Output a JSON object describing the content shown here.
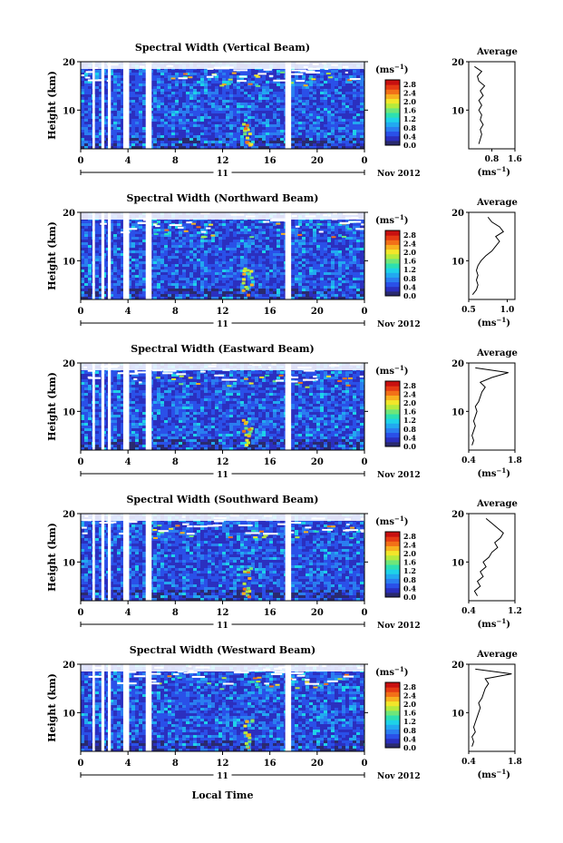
{
  "figure": {
    "xlabel_bottom": "Local Time",
    "date_label": "Nov 2012",
    "day_label": "11",
    "colorbar_unit_base": "(ms",
    "colorbar_unit_exp": "−1",
    "colorbar_unit_close": ")",
    "height_label": "Height (km)",
    "avg_title": "Average"
  },
  "colors": {
    "colormap": [
      "#2a2a6e",
      "#2b2fbf",
      "#2a50e8",
      "#2a7ef0",
      "#22a9f0",
      "#1ed2e8",
      "#2de0b0",
      "#6ee67a",
      "#b6ea3c",
      "#f2e62a",
      "#f7b01f",
      "#f27018",
      "#e53a14",
      "#c81010"
    ],
    "background": "#2f52e0"
  },
  "chart_data": [
    {
      "type": "heatmap",
      "title": "Spectral Width (Vertical Beam)",
      "ylabel": "Height (km)",
      "x_ticks": [
        "0",
        "4",
        "8",
        "12",
        "16",
        "20",
        "0"
      ],
      "y_ticks": [
        "20",
        "10"
      ],
      "xlim": [
        0,
        24
      ],
      "ylim": [
        2,
        20
      ],
      "colorbar_ticks": [
        "2.8",
        "2.4",
        "2.0",
        "1.6",
        "1.2",
        "0.8",
        "0.4",
        "0.0"
      ],
      "avg": {
        "xlim": [
          0.0,
          1.6
        ],
        "x_ticks": [
          "0.8",
          "1.6"
        ],
        "x_ticks_pos": [
          0.8,
          1.6
        ],
        "xlabel_base": "(ms",
        "xlabel_exp": "−1",
        "xlabel_close": ")",
        "profile": [
          [
            0.35,
            3
          ],
          [
            0.4,
            4
          ],
          [
            0.45,
            5
          ],
          [
            0.4,
            6
          ],
          [
            0.5,
            7
          ],
          [
            0.4,
            8
          ],
          [
            0.45,
            9
          ],
          [
            0.35,
            10
          ],
          [
            0.45,
            11
          ],
          [
            0.35,
            12
          ],
          [
            0.5,
            13
          ],
          [
            0.4,
            14
          ],
          [
            0.55,
            15
          ],
          [
            0.35,
            16
          ],
          [
            0.3,
            17
          ],
          [
            0.45,
            18
          ],
          [
            0.2,
            19
          ]
        ]
      }
    },
    {
      "type": "heatmap",
      "title": "Spectral Width (Northward Beam)",
      "ylabel": "Height (km)",
      "x_ticks": [
        "0",
        "4",
        "8",
        "12",
        "16",
        "20",
        "0"
      ],
      "y_ticks": [
        "20",
        "10"
      ],
      "xlim": [
        0,
        24
      ],
      "ylim": [
        2,
        20
      ],
      "colorbar_ticks": [
        "2.8",
        "2.4",
        "2.0",
        "1.6",
        "1.2",
        "0.8",
        "0.4",
        "0.0"
      ],
      "avg": {
        "xlim": [
          0.5,
          1.1
        ],
        "x_ticks": [
          "0.5",
          "1.0"
        ],
        "x_ticks_pos": [
          0.5,
          1.0
        ],
        "xlabel_base": "(ms",
        "xlabel_exp": "−1",
        "xlabel_close": ")",
        "profile": [
          [
            0.55,
            3
          ],
          [
            0.6,
            4
          ],
          [
            0.62,
            5
          ],
          [
            0.6,
            6
          ],
          [
            0.62,
            7
          ],
          [
            0.6,
            8
          ],
          [
            0.62,
            9
          ],
          [
            0.66,
            10
          ],
          [
            0.72,
            11
          ],
          [
            0.8,
            12
          ],
          [
            0.85,
            13
          ],
          [
            0.9,
            14
          ],
          [
            0.85,
            15
          ],
          [
            0.95,
            16
          ],
          [
            0.9,
            17
          ],
          [
            0.8,
            18
          ],
          [
            0.75,
            19
          ]
        ]
      }
    },
    {
      "type": "heatmap",
      "title": "Spectral Width (Eastward Beam)",
      "ylabel": "Height (km)",
      "x_ticks": [
        "0",
        "4",
        "8",
        "12",
        "16",
        "20",
        "0"
      ],
      "y_ticks": [
        "20",
        "10"
      ],
      "xlim": [
        0,
        24
      ],
      "ylim": [
        2,
        20
      ],
      "colorbar_ticks": [
        "2.8",
        "2.4",
        "2.0",
        "1.6",
        "1.2",
        "0.8",
        "0.4",
        "0.0"
      ],
      "avg": {
        "xlim": [
          0.4,
          1.8
        ],
        "x_ticks": [
          "0.4",
          "1.8"
        ],
        "x_ticks_pos": [
          0.4,
          1.8
        ],
        "xlabel_base": "(ms",
        "xlabel_exp": "−1",
        "xlabel_close": ")",
        "profile": [
          [
            0.5,
            3
          ],
          [
            0.55,
            4
          ],
          [
            0.5,
            5
          ],
          [
            0.55,
            6
          ],
          [
            0.6,
            7
          ],
          [
            0.55,
            8
          ],
          [
            0.6,
            9
          ],
          [
            0.65,
            10
          ],
          [
            0.6,
            11
          ],
          [
            0.7,
            12
          ],
          [
            0.75,
            13
          ],
          [
            0.8,
            14
          ],
          [
            0.9,
            15
          ],
          [
            0.75,
            16
          ],
          [
            1.1,
            17
          ],
          [
            1.6,
            18
          ],
          [
            0.6,
            19
          ]
        ]
      }
    },
    {
      "type": "heatmap",
      "title": "Spectral Width (Southward Beam)",
      "ylabel": "Height (km)",
      "x_ticks": [
        "0",
        "4",
        "8",
        "12",
        "16",
        "20",
        "0"
      ],
      "y_ticks": [
        "20",
        "10"
      ],
      "xlim": [
        0,
        24
      ],
      "ylim": [
        2,
        20
      ],
      "colorbar_ticks": [
        "2.8",
        "2.4",
        "2.0",
        "1.6",
        "1.2",
        "0.8",
        "0.4",
        "0.0"
      ],
      "avg": {
        "xlim": [
          0.4,
          1.2
        ],
        "x_ticks": [
          "0.4",
          "1.2"
        ],
        "x_ticks_pos": [
          0.4,
          1.2
        ],
        "xlabel_base": "(ms",
        "xlabel_exp": "−1",
        "xlabel_close": ")",
        "profile": [
          [
            0.55,
            3
          ],
          [
            0.5,
            4
          ],
          [
            0.6,
            5
          ],
          [
            0.55,
            6
          ],
          [
            0.65,
            7
          ],
          [
            0.6,
            8
          ],
          [
            0.7,
            9
          ],
          [
            0.65,
            10
          ],
          [
            0.75,
            11
          ],
          [
            0.8,
            12
          ],
          [
            0.9,
            13
          ],
          [
            0.85,
            14
          ],
          [
            0.95,
            15
          ],
          [
            1.0,
            16
          ],
          [
            0.9,
            17
          ],
          [
            0.8,
            18
          ],
          [
            0.7,
            19
          ]
        ]
      }
    },
    {
      "type": "heatmap",
      "title": "Spectral Width (Westward Beam)",
      "ylabel": "Height (km)",
      "x_ticks": [
        "0",
        "4",
        "8",
        "12",
        "16",
        "20",
        "0"
      ],
      "y_ticks": [
        "20",
        "10"
      ],
      "xlim": [
        0,
        24
      ],
      "ylim": [
        2,
        20
      ],
      "colorbar_ticks": [
        "2.8",
        "2.4",
        "2.0",
        "1.6",
        "1.2",
        "0.8",
        "0.4",
        "0.0"
      ],
      "avg": {
        "xlim": [
          0.4,
          1.8
        ],
        "x_ticks": [
          "0.4",
          "1.8"
        ],
        "x_ticks_pos": [
          0.4,
          1.8
        ],
        "xlabel_base": "(ms",
        "xlabel_exp": "−1",
        "xlabel_close": ")",
        "profile": [
          [
            0.5,
            3
          ],
          [
            0.55,
            4
          ],
          [
            0.5,
            5
          ],
          [
            0.6,
            6
          ],
          [
            0.55,
            7
          ],
          [
            0.6,
            8
          ],
          [
            0.65,
            9
          ],
          [
            0.7,
            10
          ],
          [
            0.75,
            11
          ],
          [
            0.7,
            12
          ],
          [
            0.8,
            13
          ],
          [
            0.85,
            14
          ],
          [
            0.9,
            15
          ],
          [
            1.0,
            16
          ],
          [
            0.9,
            17
          ],
          [
            1.7,
            18
          ],
          [
            0.6,
            19
          ]
        ]
      }
    }
  ]
}
